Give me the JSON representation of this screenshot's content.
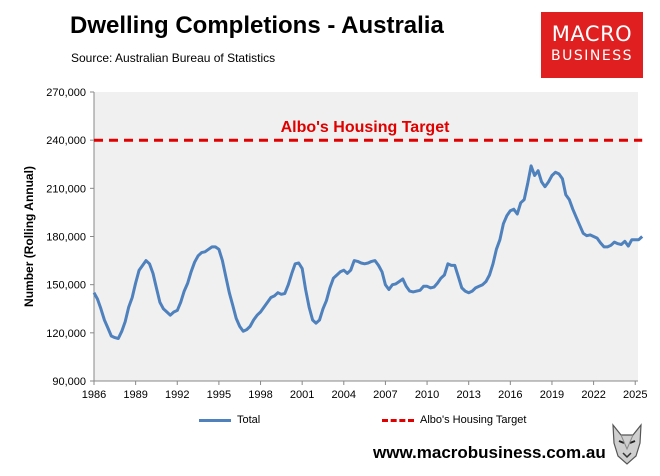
{
  "header": {
    "title": "Dwelling Completions - Australia",
    "source": "Source: Australian Bureau of Statistics"
  },
  "logo": {
    "line1": "MACRO",
    "line2": "BUSINESS"
  },
  "website": "www.macrobusiness.com.au",
  "colors": {
    "total_line": "#4f81bd",
    "target_line": "#e00000",
    "plot_bg": "#f0f0f0",
    "logo_bg": "#e02020"
  },
  "chart_data": {
    "type": "line",
    "title": "Dwelling Completions - Australia",
    "ylabel": "Number (Rolling Annual)",
    "xlabel": "",
    "xlim": [
      1986,
      2025.2
    ],
    "ylim": [
      90000,
      270000
    ],
    "xticks": [
      "1986",
      "1989",
      "1992",
      "1995",
      "1998",
      "2001",
      "2004",
      "2007",
      "2010",
      "2013",
      "2016",
      "2019",
      "2022",
      "2025"
    ],
    "yticks": [
      "90,000",
      "120,000",
      "150,000",
      "180,000",
      "210,000",
      "240,000",
      "270,000"
    ],
    "annotation": "Albo's Housing Target",
    "legend_position": "bottom",
    "series": [
      {
        "name": "Total",
        "style": "solid",
        "points": [
          [
            1986.0,
            145000
          ],
          [
            1986.25,
            141000
          ],
          [
            1986.5,
            135000
          ],
          [
            1986.75,
            128000
          ],
          [
            1987.0,
            123000
          ],
          [
            1987.25,
            118000
          ],
          [
            1987.5,
            117000
          ],
          [
            1987.75,
            116500
          ],
          [
            1988.0,
            121000
          ],
          [
            1988.25,
            127000
          ],
          [
            1988.5,
            136000
          ],
          [
            1988.75,
            142000
          ],
          [
            1989.0,
            151000
          ],
          [
            1989.25,
            159000
          ],
          [
            1989.5,
            162000
          ],
          [
            1989.75,
            165000
          ],
          [
            1990.0,
            163000
          ],
          [
            1990.25,
            157000
          ],
          [
            1990.5,
            148000
          ],
          [
            1990.75,
            139000
          ],
          [
            1991.0,
            135000
          ],
          [
            1991.25,
            133000
          ],
          [
            1991.5,
            131000
          ],
          [
            1991.75,
            133000
          ],
          [
            1992.0,
            134000
          ],
          [
            1992.25,
            139000
          ],
          [
            1992.5,
            146000
          ],
          [
            1992.75,
            151000
          ],
          [
            1993.0,
            158000
          ],
          [
            1993.25,
            164000
          ],
          [
            1993.5,
            168000
          ],
          [
            1993.75,
            170000
          ],
          [
            1994.0,
            170500
          ],
          [
            1994.25,
            172000
          ],
          [
            1994.5,
            173500
          ],
          [
            1994.75,
            173500
          ],
          [
            1995.0,
            172000
          ],
          [
            1995.25,
            165000
          ],
          [
            1995.5,
            155000
          ],
          [
            1995.75,
            145000
          ],
          [
            1996.0,
            137000
          ],
          [
            1996.25,
            129000
          ],
          [
            1996.5,
            124000
          ],
          [
            1996.75,
            121000
          ],
          [
            1997.0,
            122000
          ],
          [
            1997.25,
            124000
          ],
          [
            1997.5,
            128000
          ],
          [
            1997.75,
            131000
          ],
          [
            1998.0,
            133000
          ],
          [
            1998.25,
            136000
          ],
          [
            1998.5,
            139000
          ],
          [
            1998.75,
            142000
          ],
          [
            1999.0,
            143000
          ],
          [
            1999.25,
            145000
          ],
          [
            1999.5,
            144000
          ],
          [
            1999.75,
            144500
          ],
          [
            2000.0,
            150000
          ],
          [
            2000.25,
            157000
          ],
          [
            2000.5,
            163000
          ],
          [
            2000.75,
            163500
          ],
          [
            2001.0,
            160000
          ],
          [
            2001.25,
            147000
          ],
          [
            2001.5,
            136000
          ],
          [
            2001.75,
            128000
          ],
          [
            2002.0,
            126000
          ],
          [
            2002.25,
            128000
          ],
          [
            2002.5,
            135000
          ],
          [
            2002.75,
            140000
          ],
          [
            2003.0,
            148000
          ],
          [
            2003.25,
            154000
          ],
          [
            2003.5,
            156000
          ],
          [
            2003.75,
            158000
          ],
          [
            2004.0,
            159000
          ],
          [
            2004.25,
            157000
          ],
          [
            2004.5,
            159000
          ],
          [
            2004.75,
            165000
          ],
          [
            2005.0,
            164500
          ],
          [
            2005.25,
            163500
          ],
          [
            2005.5,
            163000
          ],
          [
            2005.75,
            163500
          ],
          [
            2006.0,
            164500
          ],
          [
            2006.25,
            165000
          ],
          [
            2006.5,
            162000
          ],
          [
            2006.75,
            158000
          ],
          [
            2007.0,
            150000
          ],
          [
            2007.25,
            147000
          ],
          [
            2007.5,
            150000
          ],
          [
            2007.75,
            150500
          ],
          [
            2008.0,
            152000
          ],
          [
            2008.25,
            153500
          ],
          [
            2008.5,
            149000
          ],
          [
            2008.75,
            146000
          ],
          [
            2009.0,
            145500
          ],
          [
            2009.25,
            146000
          ],
          [
            2009.5,
            146500
          ],
          [
            2009.75,
            149000
          ],
          [
            2010.0,
            149000
          ],
          [
            2010.25,
            148000
          ],
          [
            2010.5,
            148500
          ],
          [
            2010.75,
            151000
          ],
          [
            2011.0,
            154000
          ],
          [
            2011.25,
            156000
          ],
          [
            2011.5,
            163000
          ],
          [
            2011.75,
            162000
          ],
          [
            2012.0,
            162000
          ],
          [
            2012.25,
            155000
          ],
          [
            2012.5,
            148000
          ],
          [
            2012.75,
            146000
          ],
          [
            2013.0,
            145000
          ],
          [
            2013.25,
            146000
          ],
          [
            2013.5,
            148000
          ],
          [
            2013.75,
            149000
          ],
          [
            2014.0,
            150000
          ],
          [
            2014.25,
            152000
          ],
          [
            2014.5,
            156000
          ],
          [
            2014.75,
            163000
          ],
          [
            2015.0,
            172000
          ],
          [
            2015.25,
            178000
          ],
          [
            2015.5,
            188000
          ],
          [
            2015.75,
            193000
          ],
          [
            2016.0,
            196000
          ],
          [
            2016.25,
            197000
          ],
          [
            2016.5,
            194000
          ],
          [
            2016.75,
            201000
          ],
          [
            2017.0,
            203000
          ],
          [
            2017.25,
            213000
          ],
          [
            2017.5,
            224000
          ],
          [
            2017.75,
            218000
          ],
          [
            2018.0,
            221000
          ],
          [
            2018.25,
            214000
          ],
          [
            2018.5,
            211000
          ],
          [
            2018.75,
            214000
          ],
          [
            2019.0,
            218000
          ],
          [
            2019.25,
            220000
          ],
          [
            2019.5,
            219000
          ],
          [
            2019.75,
            216000
          ],
          [
            2020.0,
            206000
          ],
          [
            2020.25,
            203000
          ],
          [
            2020.5,
            197000
          ],
          [
            2020.75,
            192000
          ],
          [
            2021.0,
            187000
          ],
          [
            2021.25,
            182000
          ],
          [
            2021.5,
            180500
          ],
          [
            2021.75,
            181000
          ],
          [
            2022.0,
            180000
          ],
          [
            2022.25,
            179000
          ],
          [
            2022.5,
            176000
          ],
          [
            2022.75,
            173500
          ],
          [
            2023.0,
            173500
          ],
          [
            2023.25,
            174500
          ],
          [
            2023.5,
            176500
          ],
          [
            2023.75,
            175500
          ],
          [
            2024.0,
            175000
          ],
          [
            2024.25,
            177000
          ],
          [
            2024.5,
            174000
          ],
          [
            2024.75,
            178000
          ],
          [
            2025.0,
            178000
          ],
          [
            2025.25,
            178000
          ],
          [
            2025.5,
            180000
          ]
        ]
      },
      {
        "name": "Albo's Housing Target",
        "style": "dashed",
        "points": [
          [
            1986.0,
            240000
          ],
          [
            2025.5,
            240000
          ]
        ]
      }
    ]
  }
}
